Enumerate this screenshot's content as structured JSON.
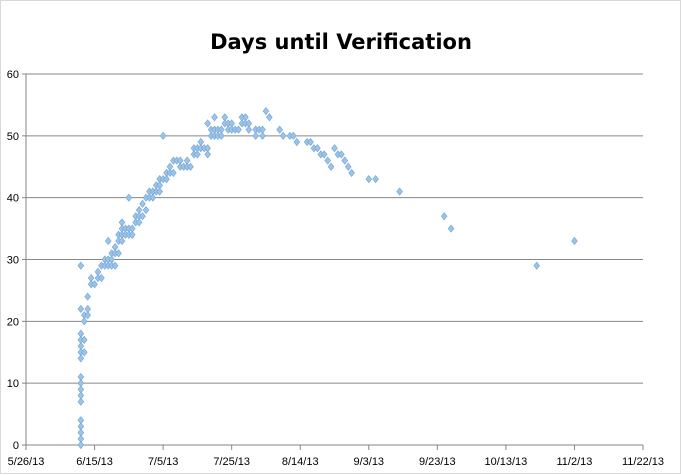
{
  "chart_data": {
    "type": "scatter",
    "title": "Days until Verification",
    "xlabel": "",
    "ylabel": "",
    "xlim": [
      "2013-05-26",
      "2013-11-22"
    ],
    "ylim": [
      0,
      60
    ],
    "x_tick_labels": [
      "5/26/13",
      "6/15/13",
      "7/5/13",
      "7/25/13",
      "8/14/13",
      "9/3/13",
      "9/23/13",
      "10/13/13",
      "11/2/13",
      "11/22/13"
    ],
    "y_tick_labels": [
      "0",
      "10",
      "20",
      "30",
      "40",
      "50",
      "60"
    ],
    "grid": "horizontal",
    "legend": "none",
    "marker_color": "#9dc3e6",
    "marker_stroke": "#6fa3d8",
    "series": [
      {
        "points": [
          [
            "2013-06-11",
            29
          ],
          [
            "2013-06-11",
            22
          ],
          [
            "2013-06-11",
            18
          ],
          [
            "2013-06-11",
            17
          ],
          [
            "2013-06-11",
            16
          ],
          [
            "2013-06-11",
            15
          ],
          [
            "2013-06-11",
            14
          ],
          [
            "2013-06-11",
            11
          ],
          [
            "2013-06-11",
            10
          ],
          [
            "2013-06-11",
            9
          ],
          [
            "2013-06-11",
            8
          ],
          [
            "2013-06-11",
            7
          ],
          [
            "2013-06-11",
            4
          ],
          [
            "2013-06-11",
            3
          ],
          [
            "2013-06-11",
            2
          ],
          [
            "2013-06-11",
            1
          ],
          [
            "2013-06-11",
            0
          ],
          [
            "2013-06-12",
            21
          ],
          [
            "2013-06-12",
            20
          ],
          [
            "2013-06-12",
            17
          ],
          [
            "2013-06-12",
            15
          ],
          [
            "2013-06-13",
            24
          ],
          [
            "2013-06-13",
            22
          ],
          [
            "2013-06-13",
            21
          ],
          [
            "2013-06-14",
            27
          ],
          [
            "2013-06-14",
            26
          ],
          [
            "2013-06-15",
            26
          ],
          [
            "2013-06-16",
            28
          ],
          [
            "2013-06-16",
            27
          ],
          [
            "2013-06-17",
            29
          ],
          [
            "2013-06-17",
            27
          ],
          [
            "2013-06-18",
            30
          ],
          [
            "2013-06-18",
            29
          ],
          [
            "2013-06-19",
            33
          ],
          [
            "2013-06-19",
            30
          ],
          [
            "2013-06-19",
            29
          ],
          [
            "2013-06-20",
            31
          ],
          [
            "2013-06-20",
            30
          ],
          [
            "2013-06-20",
            29
          ],
          [
            "2013-06-21",
            32
          ],
          [
            "2013-06-21",
            31
          ],
          [
            "2013-06-21",
            29
          ],
          [
            "2013-06-22",
            34
          ],
          [
            "2013-06-22",
            33
          ],
          [
            "2013-06-22",
            31
          ],
          [
            "2013-06-23",
            36
          ],
          [
            "2013-06-23",
            35
          ],
          [
            "2013-06-23",
            34
          ],
          [
            "2013-06-23",
            33
          ],
          [
            "2013-06-24",
            35
          ],
          [
            "2013-06-24",
            34
          ],
          [
            "2013-06-25",
            40
          ],
          [
            "2013-06-25",
            35
          ],
          [
            "2013-06-25",
            34
          ],
          [
            "2013-06-26",
            35
          ],
          [
            "2013-06-26",
            34
          ],
          [
            "2013-06-27",
            37
          ],
          [
            "2013-06-27",
            36
          ],
          [
            "2013-06-28",
            38
          ],
          [
            "2013-06-28",
            37
          ],
          [
            "2013-06-28",
            36
          ],
          [
            "2013-06-29",
            39
          ],
          [
            "2013-06-29",
            37
          ],
          [
            "2013-06-30",
            40
          ],
          [
            "2013-06-30",
            38
          ],
          [
            "2013-07-01",
            41
          ],
          [
            "2013-07-01",
            40
          ],
          [
            "2013-07-02",
            41
          ],
          [
            "2013-07-02",
            40
          ],
          [
            "2013-07-03",
            42
          ],
          [
            "2013-07-03",
            41
          ],
          [
            "2013-07-04",
            43
          ],
          [
            "2013-07-04",
            42
          ],
          [
            "2013-07-04",
            41
          ],
          [
            "2013-07-05",
            50
          ],
          [
            "2013-07-05",
            43
          ],
          [
            "2013-07-06",
            44
          ],
          [
            "2013-07-06",
            43
          ],
          [
            "2013-07-07",
            45
          ],
          [
            "2013-07-07",
            44
          ],
          [
            "2013-07-08",
            46
          ],
          [
            "2013-07-08",
            44
          ],
          [
            "2013-07-09",
            46
          ],
          [
            "2013-07-10",
            46
          ],
          [
            "2013-07-10",
            45
          ],
          [
            "2013-07-11",
            45
          ],
          [
            "2013-07-12",
            46
          ],
          [
            "2013-07-12",
            45
          ],
          [
            "2013-07-13",
            45
          ],
          [
            "2013-07-14",
            48
          ],
          [
            "2013-07-14",
            47
          ],
          [
            "2013-07-15",
            48
          ],
          [
            "2013-07-15",
            47
          ],
          [
            "2013-07-16",
            49
          ],
          [
            "2013-07-16",
            48
          ],
          [
            "2013-07-17",
            48
          ],
          [
            "2013-07-18",
            52
          ],
          [
            "2013-07-18",
            48
          ],
          [
            "2013-07-18",
            47
          ],
          [
            "2013-07-19",
            51
          ],
          [
            "2013-07-19",
            50
          ],
          [
            "2013-07-20",
            53
          ],
          [
            "2013-07-20",
            51
          ],
          [
            "2013-07-20",
            50
          ],
          [
            "2013-07-21",
            51
          ],
          [
            "2013-07-21",
            50
          ],
          [
            "2013-07-22",
            51
          ],
          [
            "2013-07-22",
            50
          ],
          [
            "2013-07-23",
            53
          ],
          [
            "2013-07-23",
            52
          ],
          [
            "2013-07-24",
            52
          ],
          [
            "2013-07-24",
            51
          ],
          [
            "2013-07-25",
            52
          ],
          [
            "2013-07-25",
            51
          ],
          [
            "2013-07-26",
            51
          ],
          [
            "2013-07-27",
            51
          ],
          [
            "2013-07-28",
            53
          ],
          [
            "2013-07-28",
            52
          ],
          [
            "2013-07-29",
            53
          ],
          [
            "2013-07-29",
            52
          ],
          [
            "2013-07-30",
            52
          ],
          [
            "2013-07-30",
            51
          ],
          [
            "2013-08-01",
            51
          ],
          [
            "2013-08-01",
            50
          ],
          [
            "2013-08-02",
            51
          ],
          [
            "2013-08-03",
            51
          ],
          [
            "2013-08-03",
            50
          ],
          [
            "2013-08-04",
            54
          ],
          [
            "2013-08-05",
            53
          ],
          [
            "2013-08-08",
            51
          ],
          [
            "2013-08-09",
            50
          ],
          [
            "2013-08-11",
            50
          ],
          [
            "2013-08-12",
            50
          ],
          [
            "2013-08-13",
            49
          ],
          [
            "2013-08-16",
            49
          ],
          [
            "2013-08-17",
            49
          ],
          [
            "2013-08-18",
            48
          ],
          [
            "2013-08-19",
            48
          ],
          [
            "2013-08-20",
            47
          ],
          [
            "2013-08-21",
            47
          ],
          [
            "2013-08-22",
            46
          ],
          [
            "2013-08-23",
            45
          ],
          [
            "2013-08-24",
            48
          ],
          [
            "2013-08-25",
            47
          ],
          [
            "2013-08-26",
            47
          ],
          [
            "2013-08-27",
            46
          ],
          [
            "2013-08-28",
            45
          ],
          [
            "2013-08-29",
            44
          ],
          [
            "2013-09-03",
            43
          ],
          [
            "2013-09-05",
            43
          ],
          [
            "2013-09-12",
            41
          ],
          [
            "2013-09-25",
            37
          ],
          [
            "2013-09-27",
            35
          ],
          [
            "2013-10-22",
            29
          ],
          [
            "2013-11-02",
            33
          ]
        ]
      }
    ]
  }
}
